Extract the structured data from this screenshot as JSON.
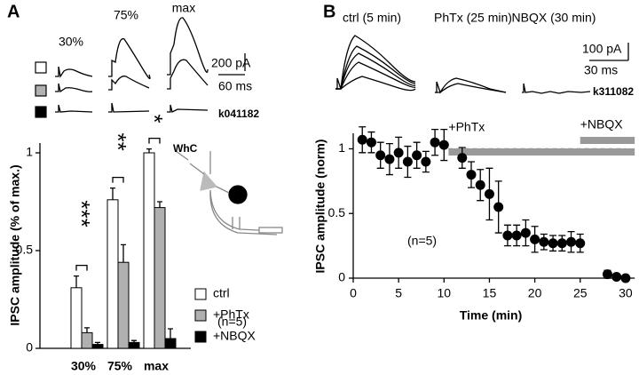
{
  "chart_data": [
    {
      "type": "bar",
      "panel_label": "A",
      "trace_labels": [
        "30%",
        "75%",
        "max"
      ],
      "scale_bar": {
        "y": "200 pA",
        "x": "60 ms"
      },
      "cell_id": "k041182",
      "ylabel": "IPSC amplitude (% of max.)",
      "categories": [
        "30%",
        "75%",
        "max"
      ],
      "series": [
        {
          "name": "ctrl",
          "color": "#ffffff",
          "values": [
            0.31,
            0.76,
            1.0
          ],
          "errors": [
            0.06,
            0.06,
            0.02
          ]
        },
        {
          "name": "+PhTx",
          "color": "#b0b0b0",
          "values": [
            0.08,
            0.44,
            0.72
          ],
          "errors": [
            0.025,
            0.09,
            0.03
          ]
        },
        {
          "name": "+NBQX",
          "color": "#000000",
          "values": [
            0.02,
            0.03,
            0.05
          ],
          "errors": [
            0.01,
            0.01,
            0.05
          ]
        }
      ],
      "significance": [
        "***",
        "**",
        "*"
      ],
      "inset_label": "WhC",
      "annotation": "(n=5)",
      "ylim": [
        0,
        1.05
      ],
      "yticks": [
        0,
        0.5,
        1
      ]
    },
    {
      "type": "scatter",
      "panel_label": "B",
      "trace_labels": [
        "ctrl (5 min)",
        "PhTx (25 min)",
        "NBQX (30 min)"
      ],
      "scale_bar": {
        "y": "100 pA",
        "x": "30 ms"
      },
      "cell_id": "k311082",
      "xlabel": "Time (min)",
      "ylabel": "IPSC amplitude (norm)",
      "x": [
        1,
        2,
        3,
        4,
        5,
        6,
        7,
        8,
        9,
        10,
        12,
        13,
        14,
        15,
        16,
        17,
        18,
        19,
        20,
        21,
        22,
        23,
        24,
        25,
        28,
        29,
        30
      ],
      "values": [
        1.07,
        1.05,
        0.95,
        0.92,
        0.97,
        0.9,
        0.95,
        0.9,
        1.05,
        1.03,
        0.93,
        0.8,
        0.72,
        0.65,
        0.55,
        0.33,
        0.33,
        0.35,
        0.3,
        0.28,
        0.27,
        0.27,
        0.28,
        0.27,
        0.03,
        0.01,
        0.0
      ],
      "errors": [
        0.1,
        0.08,
        0.1,
        0.12,
        0.12,
        0.12,
        0.1,
        0.08,
        0.1,
        0.12,
        0.08,
        0.1,
        0.12,
        0.2,
        0.2,
        0.08,
        0.08,
        0.1,
        0.1,
        0.06,
        0.06,
        0.06,
        0.08,
        0.07,
        0.03,
        0.02,
        0.02
      ],
      "color": "#000000",
      "reference_line": 1,
      "drug_bars": [
        {
          "label": "+PhTx",
          "start": 10.5,
          "end": 31
        },
        {
          "label": "+NBQX",
          "start": 25,
          "end": 31
        }
      ],
      "annotation": "(n=5)",
      "xlim": [
        0,
        31
      ],
      "ylim": [
        0,
        1.12
      ],
      "xticks": [
        0,
        5,
        10,
        15,
        20,
        25,
        30
      ],
      "yticks": [
        0,
        0.5,
        1
      ]
    }
  ]
}
